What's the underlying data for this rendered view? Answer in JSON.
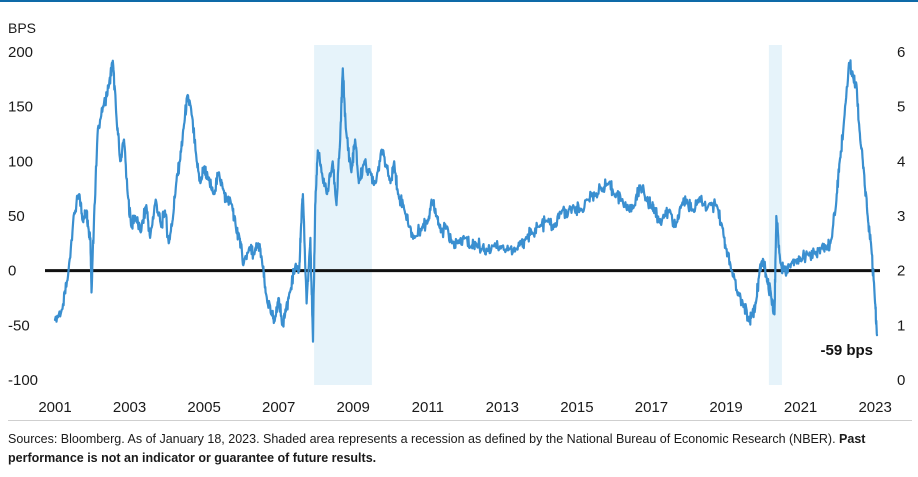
{
  "chart_data": {
    "type": "line",
    "title": "",
    "ylabel_left": "BPS",
    "left_axis": {
      "ylim": [
        -100,
        200
      ],
      "ticks": [
        200,
        150,
        100,
        50,
        0,
        -50,
        -100
      ]
    },
    "right_axis": {
      "ylim": [
        0,
        6
      ],
      "ticks": [
        6,
        5,
        4,
        3,
        2,
        1,
        0
      ]
    },
    "x_ticks": [
      "2001",
      "2003",
      "2005",
      "2007",
      "2009",
      "2011",
      "2013",
      "2015",
      "2017",
      "2019",
      "2021",
      "2023"
    ],
    "xlim": [
      2001.0,
      2023.05
    ],
    "zero_line": 0,
    "recessions": [
      [
        2007.95,
        2009.5
      ],
      [
        2020.15,
        2020.5
      ]
    ],
    "annotation": {
      "text": "-59 bps",
      "x": 2023.05,
      "y": -59
    },
    "line_color": "#3a8fd0",
    "series": [
      {
        "values": [
          [
            2001.0,
            -45
          ],
          [
            2001.2,
            -35
          ],
          [
            2001.35,
            -5
          ],
          [
            2001.5,
            50
          ],
          [
            2001.65,
            70
          ],
          [
            2001.75,
            45
          ],
          [
            2001.85,
            55
          ],
          [
            2001.9,
            38
          ],
          [
            2001.95,
            30
          ],
          [
            2001.98,
            -20
          ],
          [
            2002.05,
            50
          ],
          [
            2002.15,
            130
          ],
          [
            2002.3,
            150
          ],
          [
            2002.45,
            170
          ],
          [
            2002.55,
            192
          ],
          [
            2002.65,
            140
          ],
          [
            2002.75,
            100
          ],
          [
            2002.85,
            120
          ],
          [
            2002.95,
            70
          ],
          [
            2003.05,
            40
          ],
          [
            2003.15,
            50
          ],
          [
            2003.3,
            35
          ],
          [
            2003.45,
            60
          ],
          [
            2003.55,
            30
          ],
          [
            2003.7,
            65
          ],
          [
            2003.85,
            40
          ],
          [
            2003.95,
            55
          ],
          [
            2004.05,
            25
          ],
          [
            2004.15,
            45
          ],
          [
            2004.25,
            80
          ],
          [
            2004.35,
            100
          ],
          [
            2004.45,
            130
          ],
          [
            2004.55,
            160
          ],
          [
            2004.65,
            148
          ],
          [
            2004.8,
            100
          ],
          [
            2004.9,
            80
          ],
          [
            2005.0,
            95
          ],
          [
            2005.1,
            85
          ],
          [
            2005.25,
            70
          ],
          [
            2005.4,
            90
          ],
          [
            2005.5,
            75
          ],
          [
            2005.6,
            65
          ],
          [
            2005.75,
            60
          ],
          [
            2005.85,
            40
          ],
          [
            2005.95,
            30
          ],
          [
            2006.05,
            5
          ],
          [
            2006.2,
            20
          ],
          [
            2006.35,
            15
          ],
          [
            2006.45,
            25
          ],
          [
            2006.55,
            10
          ],
          [
            2006.65,
            -20
          ],
          [
            2006.8,
            -40
          ],
          [
            2006.9,
            -45
          ],
          [
            2007.0,
            -25
          ],
          [
            2007.1,
            -50
          ],
          [
            2007.2,
            -35
          ],
          [
            2007.3,
            -20
          ],
          [
            2007.45,
            5
          ],
          [
            2007.55,
            0
          ],
          [
            2007.6,
            40
          ],
          [
            2007.65,
            70
          ],
          [
            2007.75,
            -30
          ],
          [
            2007.85,
            30
          ],
          [
            2007.92,
            -65
          ],
          [
            2007.98,
            60
          ],
          [
            2008.05,
            110
          ],
          [
            2008.15,
            90
          ],
          [
            2008.3,
            70
          ],
          [
            2008.45,
            100
          ],
          [
            2008.55,
            60
          ],
          [
            2008.65,
            120
          ],
          [
            2008.72,
            185
          ],
          [
            2008.8,
            130
          ],
          [
            2008.95,
            90
          ],
          [
            2009.05,
            120
          ],
          [
            2009.15,
            80
          ],
          [
            2009.3,
            100
          ],
          [
            2009.45,
            90
          ],
          [
            2009.6,
            80
          ],
          [
            2009.75,
            110
          ],
          [
            2009.9,
            95
          ],
          [
            2010.0,
            80
          ],
          [
            2010.1,
            100
          ],
          [
            2010.2,
            70
          ],
          [
            2010.35,
            60
          ],
          [
            2010.5,
            40
          ],
          [
            2010.65,
            30
          ],
          [
            2010.85,
            40
          ],
          [
            2011.0,
            45
          ],
          [
            2011.1,
            65
          ],
          [
            2011.25,
            50
          ],
          [
            2011.35,
            35
          ],
          [
            2011.5,
            40
          ],
          [
            2011.65,
            25
          ],
          [
            2011.8,
            25
          ],
          [
            2012.0,
            30
          ],
          [
            2012.15,
            22
          ],
          [
            2012.3,
            25
          ],
          [
            2012.45,
            20
          ],
          [
            2012.6,
            18
          ],
          [
            2012.8,
            25
          ],
          [
            2013.0,
            22
          ],
          [
            2013.2,
            20
          ],
          [
            2013.4,
            20
          ],
          [
            2013.5,
            25
          ],
          [
            2013.65,
            30
          ],
          [
            2013.8,
            35
          ],
          [
            2014.0,
            40
          ],
          [
            2014.2,
            45
          ],
          [
            2014.4,
            40
          ],
          [
            2014.6,
            55
          ],
          [
            2014.75,
            50
          ],
          [
            2014.9,
            60
          ],
          [
            2015.1,
            55
          ],
          [
            2015.3,
            65
          ],
          [
            2015.5,
            70
          ],
          [
            2015.7,
            75
          ],
          [
            2015.85,
            80
          ],
          [
            2016.0,
            70
          ],
          [
            2016.2,
            65
          ],
          [
            2016.4,
            55
          ],
          [
            2016.55,
            60
          ],
          [
            2016.7,
            78
          ],
          [
            2016.85,
            65
          ],
          [
            2017.0,
            60
          ],
          [
            2017.1,
            55
          ],
          [
            2017.2,
            45
          ],
          [
            2017.35,
            50
          ],
          [
            2017.5,
            55
          ],
          [
            2017.65,
            40
          ],
          [
            2017.8,
            60
          ],
          [
            2017.95,
            65
          ],
          [
            2018.1,
            55
          ],
          [
            2018.25,
            65
          ],
          [
            2018.4,
            60
          ],
          [
            2018.6,
            60
          ],
          [
            2018.75,
            60
          ],
          [
            2018.9,
            40
          ],
          [
            2019.0,
            20
          ],
          [
            2019.15,
            0
          ],
          [
            2019.3,
            -20
          ],
          [
            2019.45,
            -30
          ],
          [
            2019.6,
            -45
          ],
          [
            2019.7,
            -40
          ],
          [
            2019.8,
            -30
          ],
          [
            2019.9,
            0
          ],
          [
            2020.0,
            10
          ],
          [
            2020.1,
            -10
          ],
          [
            2020.2,
            -20
          ],
          [
            2020.3,
            -40
          ],
          [
            2020.35,
            50
          ],
          [
            2020.45,
            10
          ],
          [
            2020.55,
            0
          ],
          [
            2020.7,
            5
          ],
          [
            2020.85,
            10
          ],
          [
            2021.0,
            10
          ],
          [
            2021.2,
            15
          ],
          [
            2021.4,
            15
          ],
          [
            2021.55,
            20
          ],
          [
            2021.7,
            20
          ],
          [
            2021.8,
            25
          ],
          [
            2021.95,
            60
          ],
          [
            2022.05,
            100
          ],
          [
            2022.15,
            130
          ],
          [
            2022.3,
            190
          ],
          [
            2022.4,
            180
          ],
          [
            2022.5,
            170
          ],
          [
            2022.6,
            120
          ],
          [
            2022.7,
            90
          ],
          [
            2022.8,
            50
          ],
          [
            2022.9,
            20
          ],
          [
            2023.0,
            -30
          ],
          [
            2023.05,
            -59
          ]
        ]
      }
    ]
  },
  "footnote": {
    "text": "Sources: Bloomberg. As of January 18, 2023. Shaded area represents a recession as defined by the National Bureau of Economic Research (NBER).",
    "bold": "Past performance is not an indicator or guarantee of future results."
  }
}
